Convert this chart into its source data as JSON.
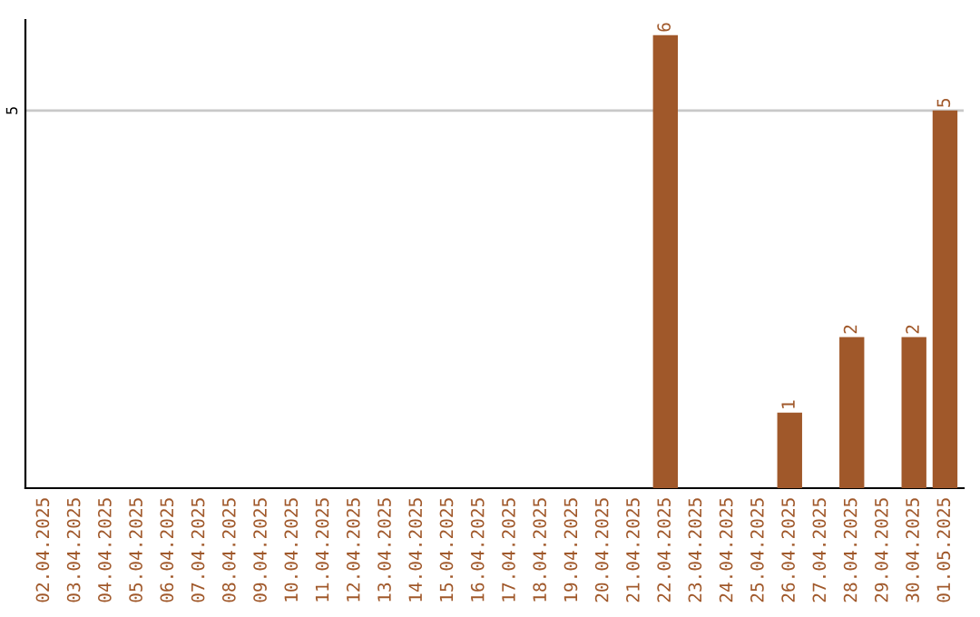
{
  "chart_data": {
    "type": "bar",
    "categories": [
      "02.04.2025",
      "03.04.2025",
      "04.04.2025",
      "05.04.2025",
      "06.04.2025",
      "07.04.2025",
      "08.04.2025",
      "09.04.2025",
      "10.04.2025",
      "11.04.2025",
      "12.04.2025",
      "13.04.2025",
      "14.04.2025",
      "15.04.2025",
      "16.04.2025",
      "17.04.2025",
      "18.04.2025",
      "19.04.2025",
      "20.04.2025",
      "21.04.2025",
      "22.04.2025",
      "23.04.2025",
      "24.04.2025",
      "25.04.2025",
      "26.04.2025",
      "27.04.2025",
      "28.04.2025",
      "29.04.2025",
      "30.04.2025",
      "01.05.2025"
    ],
    "values": [
      null,
      null,
      null,
      null,
      null,
      null,
      null,
      null,
      null,
      null,
      null,
      null,
      null,
      null,
      null,
      null,
      null,
      null,
      null,
      null,
      6,
      null,
      null,
      null,
      1,
      null,
      2,
      null,
      2,
      5
    ],
    "data_labels": true,
    "color": "#a0582a",
    "ylim": [
      0,
      6.2
    ],
    "yticks": [
      5
    ],
    "grid": "y"
  }
}
